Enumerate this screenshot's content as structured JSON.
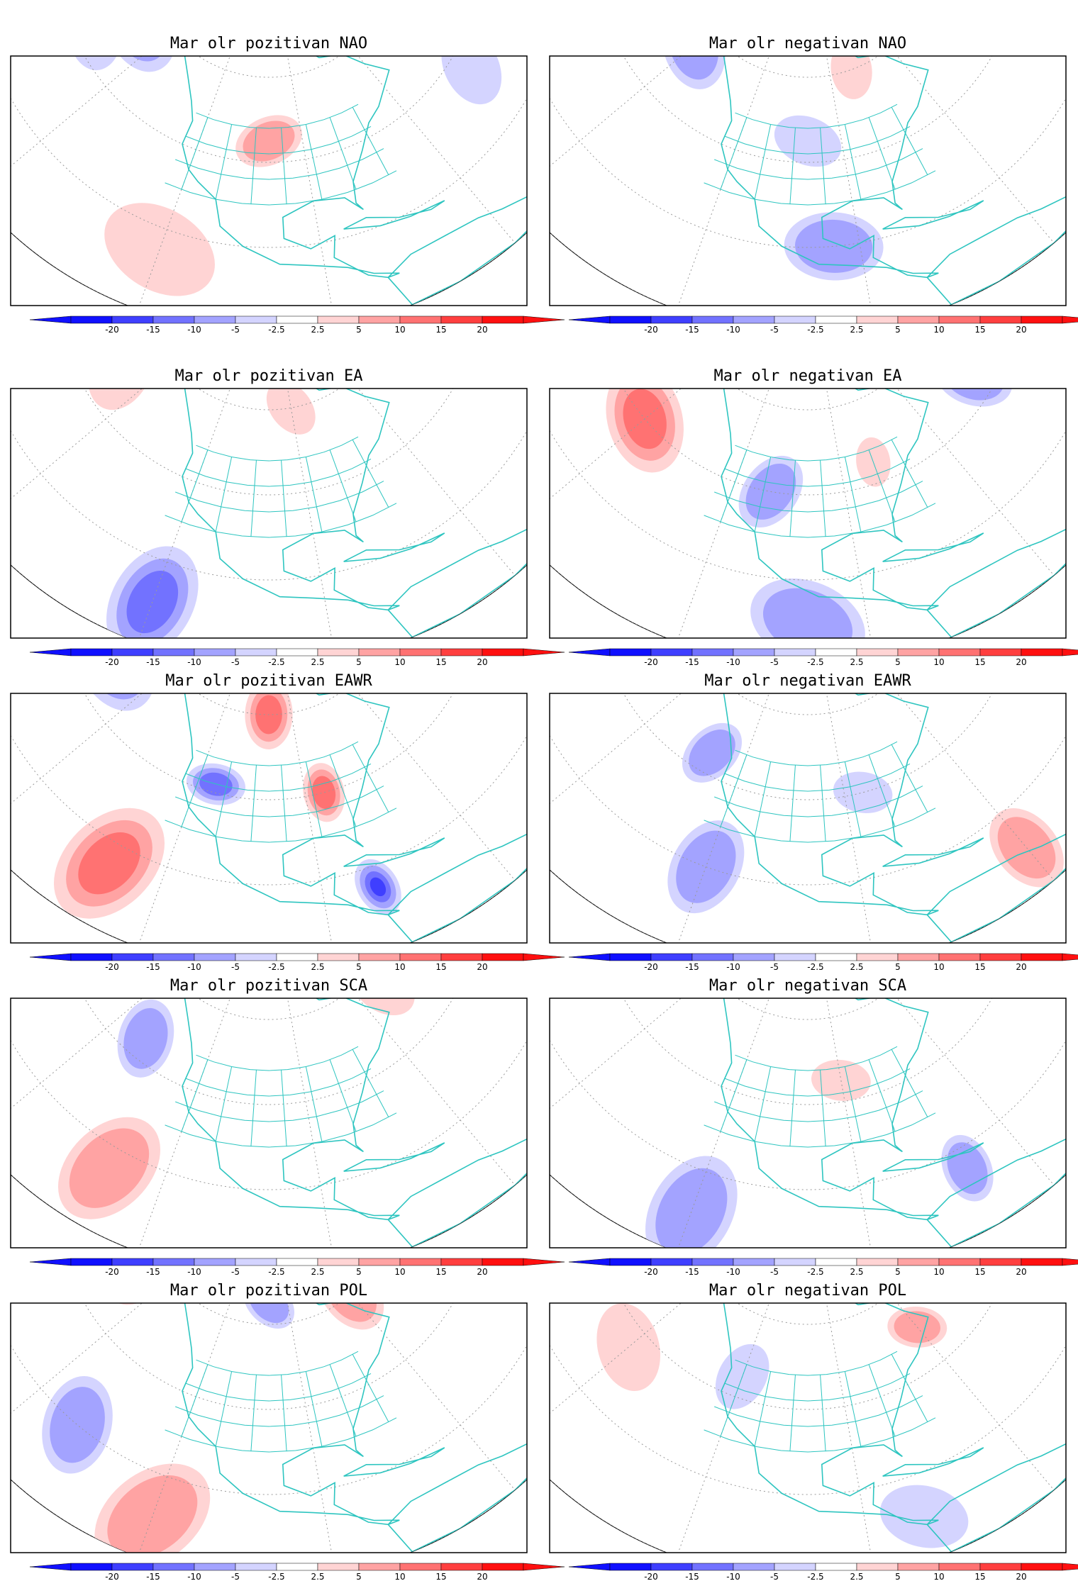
{
  "colors": {
    "frame": "#000000",
    "coast": "#2ec5c0",
    "grid": "#9a9a9a",
    "neg": [
      "#1010ff",
      "#3f3fff",
      "#7272ff",
      "#a3a3ff",
      "#d4d4ff"
    ],
    "pos": [
      "#ffd4d4",
      "#ffa3a3",
      "#ff7272",
      "#ff3f3f",
      "#ff1010"
    ]
  },
  "colorbar": {
    "labels": [
      "-20",
      "-15",
      "-10",
      "-5",
      "-2.5",
      "2.5",
      "5",
      "10",
      "15",
      "20"
    ]
  },
  "panels": [
    {
      "title": "Mar olr pozitivan NAO",
      "anomalies": [
        {
          "sign": "neg",
          "level": 2,
          "lon": -160,
          "lat": 55,
          "size": 1.0
        },
        {
          "sign": "neg",
          "level": 1,
          "lon": -165,
          "lat": 45,
          "size": 0.8
        },
        {
          "sign": "pos",
          "level": 2,
          "lon": -100,
          "lat": 45,
          "size": 0.7
        },
        {
          "sign": "pos",
          "level": 1,
          "lon": -30,
          "lat": 60,
          "size": 0.7
        },
        {
          "sign": "neg",
          "level": 1,
          "lon": -40,
          "lat": 35,
          "size": 0.8
        },
        {
          "sign": "pos",
          "level": 1,
          "lon": -120,
          "lat": 15,
          "size": 1.2
        },
        {
          "sign": "pos",
          "level": 1,
          "lon": 150,
          "lat": 25,
          "size": 0.9
        },
        {
          "sign": "neg",
          "level": 1,
          "lon": 170,
          "lat": 60,
          "size": 0.8
        }
      ]
    },
    {
      "title": "Mar olr negativan NAO",
      "anomalies": [
        {
          "sign": "neg",
          "level": 2,
          "lon": -150,
          "lat": 55,
          "size": 0.9
        },
        {
          "sign": "pos",
          "level": 3,
          "lon": -20,
          "lat": 45,
          "size": 1.3
        },
        {
          "sign": "pos",
          "level": 2,
          "lon": -10,
          "lat": 65,
          "size": 0.8
        },
        {
          "sign": "neg",
          "level": 2,
          "lon": -95,
          "lat": 20,
          "size": 1.0
        },
        {
          "sign": "neg",
          "level": 1,
          "lon": -100,
          "lat": 45,
          "size": 0.7
        },
        {
          "sign": "pos",
          "level": 2,
          "lon": 160,
          "lat": 30,
          "size": 1.0
        },
        {
          "sign": "pos",
          "level": 1,
          "lon": -80,
          "lat": 60,
          "size": 0.6
        },
        {
          "sign": "neg",
          "level": 2,
          "lon": -40,
          "lat": 70,
          "size": 0.5
        }
      ]
    },
    {
      "title": "Mar olr pozitivan EA",
      "anomalies": [
        {
          "sign": "neg",
          "level": 2,
          "lon": 170,
          "lat": 40,
          "size": 1.1
        },
        {
          "sign": "neg",
          "level": 3,
          "lon": -120,
          "lat": 10,
          "size": 1.2
        },
        {
          "sign": "pos",
          "level": 1,
          "lon": -160,
          "lat": 50,
          "size": 0.9
        },
        {
          "sign": "neg",
          "level": 2,
          "lon": -50,
          "lat": 60,
          "size": 0.6
        },
        {
          "sign": "pos",
          "level": 2,
          "lon": -20,
          "lat": 50,
          "size": 0.9
        },
        {
          "sign": "pos",
          "level": 1,
          "lon": -90,
          "lat": 60,
          "size": 0.6
        }
      ]
    },
    {
      "title": "Mar olr negativan EA",
      "anomalies": [
        {
          "sign": "pos",
          "level": 3,
          "lon": -150,
          "lat": 40,
          "size": 1.1
        },
        {
          "sign": "neg",
          "level": 2,
          "lon": -110,
          "lat": 40,
          "size": 0.8
        },
        {
          "sign": "neg",
          "level": 2,
          "lon": -40,
          "lat": 45,
          "size": 0.8
        },
        {
          "sign": "pos",
          "level": 2,
          "lon": -10,
          "lat": 40,
          "size": 1.0
        },
        {
          "sign": "neg",
          "level": 2,
          "lon": -100,
          "lat": 10,
          "size": 1.2
        },
        {
          "sign": "neg",
          "level": 1,
          "lon": 170,
          "lat": 50,
          "size": 0.8
        },
        {
          "sign": "pos",
          "level": 1,
          "lon": -80,
          "lat": 45,
          "size": 0.5
        }
      ]
    },
    {
      "title": "Mar olr pozitivan EAWR",
      "anomalies": [
        {
          "sign": "neg",
          "level": 5,
          "lon": -165,
          "lat": 50,
          "size": 1.1
        },
        {
          "sign": "pos",
          "level": 4,
          "lon": 150,
          "lat": 30,
          "size": 1.4
        },
        {
          "sign": "pos",
          "level": 3,
          "lon": -130,
          "lat": 15,
          "size": 1.3
        },
        {
          "sign": "pos",
          "level": 3,
          "lon": -20,
          "lat": 50,
          "size": 1.1
        },
        {
          "sign": "neg",
          "level": 3,
          "lon": -115,
          "lat": 42,
          "size": 0.6
        },
        {
          "sign": "neg",
          "level": 4,
          "lon": -80,
          "lat": 15,
          "size": 0.6
        },
        {
          "sign": "pos",
          "level": 3,
          "lon": -85,
          "lat": 40,
          "size": 0.6
        },
        {
          "sign": "pos",
          "level": 3,
          "lon": -100,
          "lat": 60,
          "size": 0.7
        }
      ]
    },
    {
      "title": "Mar olr negativan EAWR",
      "anomalies": [
        {
          "sign": "pos",
          "level": 2,
          "lon": 160,
          "lat": 35,
          "size": 1.2
        },
        {
          "sign": "neg",
          "level": 2,
          "lon": -120,
          "lat": 20,
          "size": 1.0
        },
        {
          "sign": "neg",
          "level": 2,
          "lon": -130,
          "lat": 45,
          "size": 0.7
        },
        {
          "sign": "neg",
          "level": 1,
          "lon": -85,
          "lat": 40,
          "size": 0.6
        },
        {
          "sign": "pos",
          "level": 2,
          "lon": -60,
          "lat": 10,
          "size": 0.9
        },
        {
          "sign": "neg",
          "level": 1,
          "lon": -30,
          "lat": 50,
          "size": 0.8
        }
      ]
    },
    {
      "title": "Mar olr pozitivan SCA",
      "anomalies": [
        {
          "sign": "pos",
          "level": 2,
          "lon": 160,
          "lat": 30,
          "size": 1.3
        },
        {
          "sign": "neg",
          "level": 2,
          "lon": -140,
          "lat": 45,
          "size": 0.8
        },
        {
          "sign": "pos",
          "level": 2,
          "lon": -130,
          "lat": 15,
          "size": 1.2
        },
        {
          "sign": "pos",
          "level": 1,
          "lon": -50,
          "lat": 55,
          "size": 0.7
        },
        {
          "sign": "neg",
          "level": 2,
          "lon": -20,
          "lat": 40,
          "size": 0.7
        },
        {
          "sign": "neg",
          "level": 1,
          "lon": -40,
          "lat": 70,
          "size": 0.6
        }
      ]
    },
    {
      "title": "Mar olr negativan SCA",
      "anomalies": [
        {
          "sign": "pos",
          "level": 2,
          "lon": 170,
          "lat": 45,
          "size": 0.8
        },
        {
          "sign": "neg",
          "level": 2,
          "lon": -120,
          "lat": 10,
          "size": 1.2
        },
        {
          "sign": "neg",
          "level": 2,
          "lon": -20,
          "lat": 40,
          "size": 1.0
        },
        {
          "sign": "pos",
          "level": 1,
          "lon": -90,
          "lat": 45,
          "size": 0.6
        },
        {
          "sign": "pos",
          "level": 1,
          "lon": -160,
          "lat": 55,
          "size": 0.7
        },
        {
          "sign": "neg",
          "level": 2,
          "lon": -70,
          "lat": 15,
          "size": 0.7
        }
      ]
    },
    {
      "title": "Mar olr pozitivan POL",
      "anomalies": [
        {
          "sign": "neg",
          "level": 3,
          "lon": 165,
          "lat": 40,
          "size": 1.2
        },
        {
          "sign": "neg",
          "level": 2,
          "lon": -140,
          "lat": 20,
          "size": 1.0
        },
        {
          "sign": "pos",
          "level": 2,
          "lon": -120,
          "lat": 10,
          "size": 1.3
        },
        {
          "sign": "pos",
          "level": 2,
          "lon": -160,
          "lat": 55,
          "size": 0.8
        },
        {
          "sign": "pos",
          "level": 2,
          "lon": -60,
          "lat": 60,
          "size": 0.8
        },
        {
          "sign": "neg",
          "level": 2,
          "lon": -100,
          "lat": 65,
          "size": 0.6
        },
        {
          "sign": "pos",
          "level": 2,
          "lon": -20,
          "lat": 40,
          "size": 0.9
        }
      ]
    },
    {
      "title": "Mar olr negativan POL",
      "anomalies": [
        {
          "sign": "pos",
          "level": 1,
          "lon": -150,
          "lat": 35,
          "size": 0.9
        },
        {
          "sign": "neg",
          "level": 1,
          "lon": -120,
          "lat": 45,
          "size": 0.7
        },
        {
          "sign": "pos",
          "level": 2,
          "lon": -60,
          "lat": 50,
          "size": 0.6
        },
        {
          "sign": "neg",
          "level": 1,
          "lon": -80,
          "lat": 10,
          "size": 0.9
        },
        {
          "sign": "pos",
          "level": 1,
          "lon": -20,
          "lat": 65,
          "size": 0.5
        },
        {
          "sign": "neg",
          "level": 1,
          "lon": 160,
          "lat": 40,
          "size": 0.7
        }
      ]
    }
  ]
}
